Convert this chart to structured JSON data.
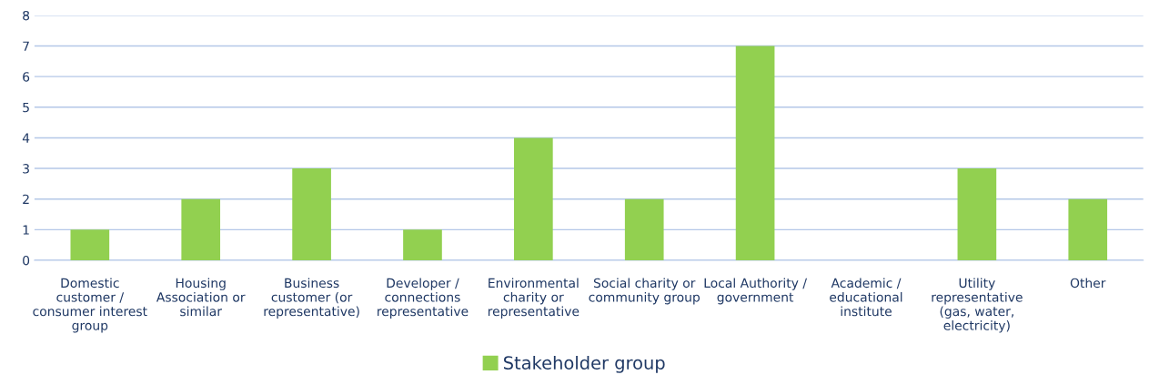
{
  "chart_data": {
    "type": "bar",
    "categories": [
      "Domestic\ncustomer /\nconsumer interest\ngroup",
      "Housing\nAssociation or\nsimilar",
      "Business\ncustomer (or\nrepresentative)",
      "Developer /\nconnections\nrepresentative",
      "Environmental\ncharity or\nrepresentative",
      "Social charity or\ncommunity group",
      "Local Authority /\ngovernment",
      "Academic /\neducational\ninstitute",
      "Utility\nrepresentative\n(gas, water,\nelectricity)",
      "Other"
    ],
    "series": [
      {
        "name": "Stakeholder group",
        "color": "#92d050",
        "values": [
          1,
          2,
          3,
          1,
          4,
          2,
          7,
          0,
          3,
          2
        ]
      }
    ],
    "ylim": [
      0,
      8
    ],
    "yticks": [
      0,
      1,
      2,
      3,
      4,
      5,
      6,
      7,
      8
    ],
    "grid": "y",
    "legend": "bottom"
  }
}
